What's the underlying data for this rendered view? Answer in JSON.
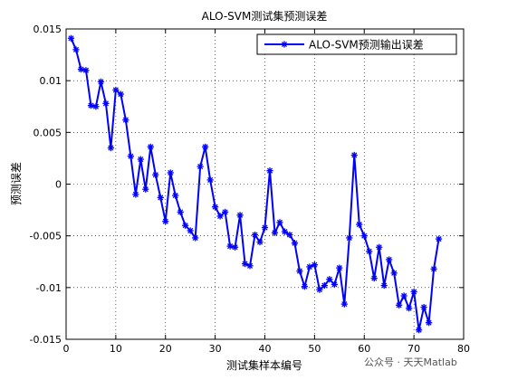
{
  "chart_data": {
    "type": "line",
    "title": "ALO-SVM测试集预测误差",
    "xlabel": "测试集样本编号",
    "ylabel": "预测误差",
    "xlim": [
      0,
      80
    ],
    "ylim": [
      -0.015,
      0.015
    ],
    "xticks": [
      0,
      10,
      20,
      30,
      40,
      50,
      60,
      70,
      80
    ],
    "yticks": [
      0.015,
      0.01,
      0.005,
      0,
      -0.005,
      -0.01,
      -0.015
    ],
    "xtick_labels": [
      "0",
      "10",
      "20",
      "30",
      "40",
      "50",
      "60",
      "70",
      "80"
    ],
    "ytick_labels": [
      "0.015",
      "0.01",
      "0.005",
      "0",
      "-0.005",
      "-0.01",
      "-0.015"
    ],
    "grid": true,
    "legend_position": "top-right",
    "series": [
      {
        "name": "ALO-SVM预测输出误差",
        "color": "#0000ff",
        "marker": "asterisk",
        "x": [
          1,
          2,
          3,
          4,
          5,
          6,
          7,
          8,
          9,
          10,
          11,
          12,
          13,
          14,
          15,
          16,
          17,
          18,
          19,
          20,
          21,
          22,
          23,
          24,
          25,
          26,
          27,
          28,
          29,
          30,
          31,
          32,
          33,
          34,
          35,
          36,
          37,
          38,
          39,
          40,
          41,
          42,
          43,
          44,
          45,
          46,
          47,
          48,
          49,
          50,
          51,
          52,
          53,
          54,
          55,
          56,
          57,
          58,
          59,
          60,
          61,
          62,
          63,
          64,
          65,
          66,
          67,
          68,
          69,
          70,
          71,
          72,
          73,
          74,
          75
        ],
        "y": [
          0.0141,
          0.013,
          0.0111,
          0.011,
          0.0076,
          0.0075,
          0.0099,
          0.0078,
          0.0035,
          0.0091,
          0.0087,
          0.0062,
          0.0027,
          -0.001,
          0.0024,
          -0.0005,
          0.0036,
          0.0009,
          -0.0013,
          -0.0036,
          0.0011,
          -0.0011,
          -0.0027,
          -0.004,
          -0.0045,
          -0.0052,
          0.0017,
          0.0036,
          0.0004,
          -0.0022,
          -0.0031,
          -0.0027,
          -0.006,
          -0.0061,
          -0.003,
          -0.0077,
          -0.0079,
          -0.0049,
          -0.0056,
          -0.0042,
          0.0013,
          -0.0047,
          -0.0037,
          -0.0046,
          -0.0049,
          -0.0057,
          -0.0084,
          -0.0099,
          -0.008,
          -0.0078,
          -0.0102,
          -0.0098,
          -0.0092,
          -0.0097,
          -0.0081,
          -0.0116,
          -0.0052,
          0.0028,
          -0.0039,
          -0.005,
          -0.0065,
          -0.0091,
          -0.0061,
          -0.0098,
          -0.0073,
          -0.0086,
          -0.0117,
          -0.0108,
          -0.012,
          -0.0104,
          -0.0141,
          -0.0119,
          -0.0134,
          -0.0082,
          -0.0053
        ]
      }
    ]
  },
  "watermark": "公众号 · 天天Matlab"
}
